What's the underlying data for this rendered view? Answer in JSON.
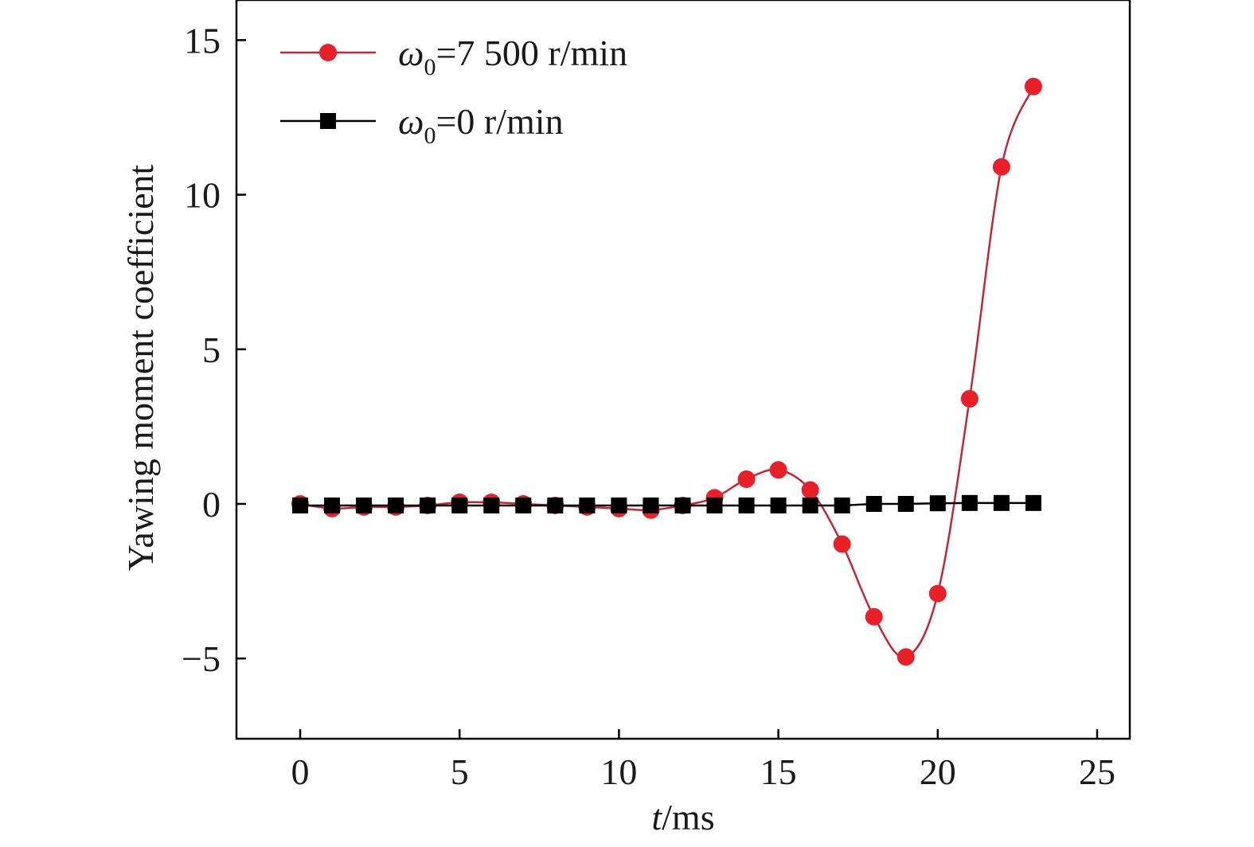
{
  "chart_data": {
    "type": "line",
    "title": "",
    "xlabel": {
      "var": "t",
      "unit": "/ms"
    },
    "ylabel": "Yawing moment coefficient",
    "xlim": [
      -2,
      26
    ],
    "ylim": [
      -7.4,
      16.2
    ],
    "xticks": [
      0,
      5,
      10,
      15,
      20,
      25
    ],
    "yticks": [
      -5,
      0,
      5,
      10,
      15
    ],
    "xtick_labels": [
      "0",
      "5",
      "10",
      "15",
      "20",
      "25"
    ],
    "ytick_labels": [
      "−5",
      "0",
      "5",
      "10",
      "15"
    ],
    "grid": false,
    "legend_position": "top-left",
    "series": [
      {
        "name": "ω0=7 500 r/min",
        "legend": {
          "symbol": "ω",
          "subscript": "0",
          "rest": "=7 500 r/min"
        },
        "color": "#e8202a",
        "line_color": "#c0283a",
        "marker": "circle",
        "x": [
          0,
          1,
          2,
          3,
          4,
          5,
          6,
          7,
          8,
          9,
          10,
          11,
          12,
          13,
          14,
          15,
          16,
          17,
          18,
          19,
          20,
          21,
          22,
          23
        ],
        "y": [
          0,
          -0.15,
          -0.1,
          -0.1,
          -0.05,
          0.05,
          0.05,
          0.0,
          -0.05,
          -0.1,
          -0.15,
          -0.2,
          -0.05,
          0.2,
          0.8,
          1.1,
          0.45,
          -1.3,
          -3.65,
          -4.95,
          -2.9,
          3.4,
          10.9,
          13.5
        ]
      },
      {
        "name": "ω0=0 r/min",
        "legend": {
          "symbol": "ω",
          "subscript": "0",
          "rest": "=0 r/min"
        },
        "color": "#000000",
        "line_color": "#000000",
        "marker": "square",
        "x": [
          0,
          1,
          2,
          3,
          4,
          5,
          6,
          7,
          8,
          9,
          10,
          11,
          12,
          13,
          14,
          15,
          16,
          17,
          18,
          19,
          20,
          21,
          22,
          23
        ],
        "y": [
          -0.05,
          -0.05,
          -0.05,
          -0.05,
          -0.05,
          -0.05,
          -0.05,
          -0.05,
          -0.05,
          -0.05,
          -0.05,
          -0.05,
          -0.05,
          -0.05,
          -0.05,
          -0.05,
          -0.05,
          -0.05,
          0.0,
          0.0,
          0.02,
          0.03,
          0.03,
          0.03
        ]
      }
    ]
  }
}
